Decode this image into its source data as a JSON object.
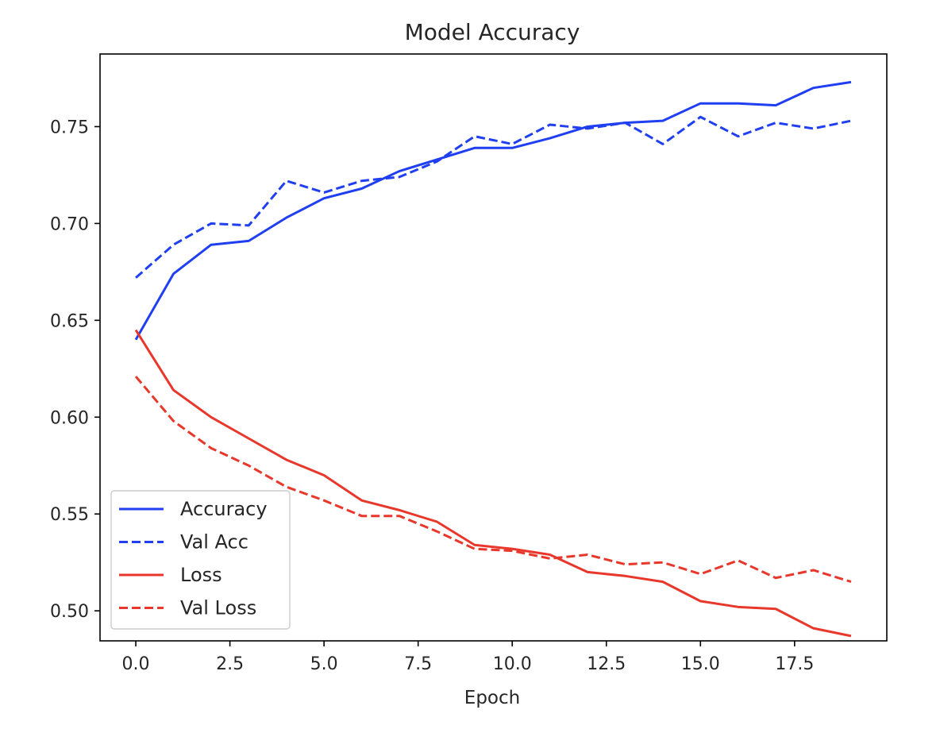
{
  "chart_data": {
    "type": "line",
    "title": "Model Accuracy",
    "xlabel": "Epoch",
    "ylabel": "",
    "xlim": [
      -0.95,
      19.95
    ],
    "ylim": [
      0.4845,
      0.7875
    ],
    "xticks": [
      0.0,
      2.5,
      5.0,
      7.5,
      10.0,
      12.5,
      15.0,
      17.5
    ],
    "xtick_labels": [
      "0.0",
      "2.5",
      "5.0",
      "7.5",
      "10.0",
      "12.5",
      "15.0",
      "17.5"
    ],
    "yticks": [
      0.5,
      0.55,
      0.6,
      0.65,
      0.7,
      0.75
    ],
    "ytick_labels": [
      "0.50",
      "0.55",
      "0.60",
      "0.65",
      "0.70",
      "0.75"
    ],
    "grid": false,
    "legend_position": "lower-left",
    "x": [
      0,
      1,
      2,
      3,
      4,
      5,
      6,
      7,
      8,
      9,
      10,
      11,
      12,
      13,
      14,
      15,
      16,
      17,
      18,
      19
    ],
    "series": [
      {
        "name": "Accuracy",
        "color": "#1f3ff0",
        "style": "solid",
        "values": [
          0.64,
          0.674,
          0.689,
          0.691,
          0.703,
          0.713,
          0.718,
          0.727,
          0.733,
          0.739,
          0.739,
          0.744,
          0.75,
          0.752,
          0.753,
          0.762,
          0.762,
          0.761,
          0.77,
          0.773
        ]
      },
      {
        "name": "Val Acc",
        "color": "#1f3ff0",
        "style": "dashed",
        "values": [
          0.672,
          0.689,
          0.7,
          0.699,
          0.722,
          0.716,
          0.722,
          0.724,
          0.732,
          0.745,
          0.741,
          0.751,
          0.749,
          0.752,
          0.741,
          0.755,
          0.745,
          0.752,
          0.749,
          0.753
        ]
      },
      {
        "name": "Loss",
        "color": "#e8372b",
        "style": "solid",
        "values": [
          0.645,
          0.614,
          0.6,
          0.589,
          0.578,
          0.57,
          0.557,
          0.552,
          0.546,
          0.534,
          0.532,
          0.529,
          0.52,
          0.518,
          0.515,
          0.505,
          0.502,
          0.501,
          0.491,
          0.487
        ]
      },
      {
        "name": "Val Loss",
        "color": "#e8372b",
        "style": "dashed",
        "values": [
          0.621,
          0.598,
          0.584,
          0.575,
          0.564,
          0.557,
          0.549,
          0.549,
          0.541,
          0.532,
          0.531,
          0.527,
          0.529,
          0.524,
          0.525,
          0.519,
          0.526,
          0.517,
          0.521,
          0.515
        ]
      }
    ]
  }
}
